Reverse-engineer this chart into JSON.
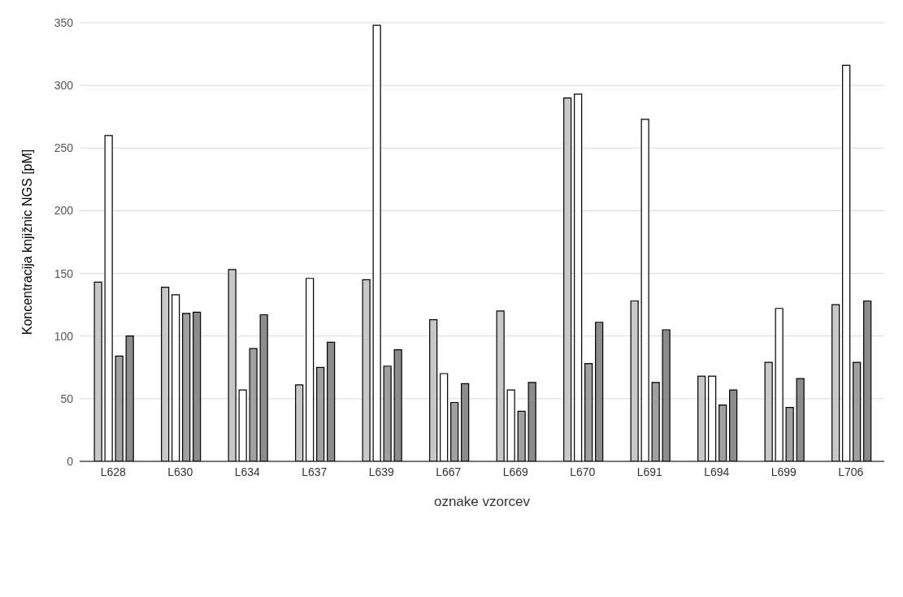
{
  "chart_data": {
    "type": "bar",
    "xlabel": "oznake vzorcev",
    "ylabel": "Koncentracija knjižnic NGS [pM]",
    "categories": [
      "L628",
      "L630",
      "L634",
      "L637",
      "L639",
      "L667",
      "L669",
      "L670",
      "L691",
      "L694",
      "L699",
      "L706"
    ],
    "series": [
      {
        "color": "#c8c8c8",
        "values": [
          143,
          139,
          153,
          61,
          145,
          113,
          120,
          290,
          128,
          68,
          79,
          125
        ]
      },
      {
        "color": "#ffffff",
        "values": [
          260,
          133,
          57,
          146,
          348,
          70,
          57,
          293,
          273,
          68,
          122,
          316
        ]
      },
      {
        "color": "#a0a0a0",
        "values": [
          84,
          118,
          90,
          75,
          76,
          47,
          40,
          78,
          63,
          45,
          43,
          79
        ]
      },
      {
        "color": "#8c8c8c",
        "values": [
          100,
          119,
          117,
          95,
          89,
          62,
          63,
          111,
          105,
          57,
          66,
          128
        ]
      }
    ],
    "ylim": [
      0,
      350
    ],
    "yticks": [
      0,
      50,
      100,
      150,
      200,
      250,
      300,
      350
    ],
    "grid": "y",
    "legend": false
  }
}
